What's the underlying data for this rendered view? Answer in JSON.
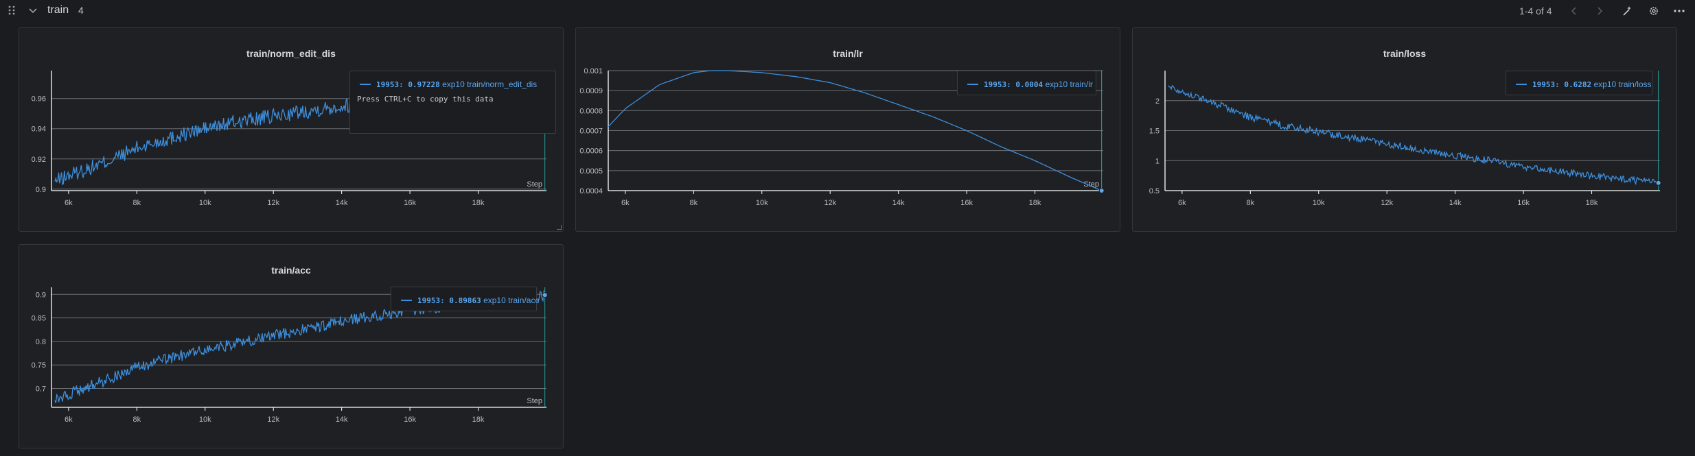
{
  "section": {
    "title": "train",
    "count": "4",
    "pagination": "1-4 of 4"
  },
  "colors": {
    "background": "#1a1c1f",
    "panel": "#1e2023",
    "line": "#3d8fde",
    "axis": "#ffffff",
    "grid": "#6c7076",
    "accent": "#5aa7f0"
  },
  "icons": [
    "drag-handle-icon",
    "chevron-down-icon",
    "chevron-left-icon",
    "chevron-right-icon",
    "wand-icon",
    "gear-icon",
    "more-options-icon"
  ],
  "panels": [
    {
      "id": "norm",
      "title": "train/norm_edit_dis",
      "legend": {
        "step": "19953",
        "value": "0.97228",
        "run": "exp10",
        "metric": "train/norm_edit_dis"
      },
      "tooltip_hint": "Press CTRL+C to copy this data",
      "x_axis_label": "Step",
      "x_ticks": [
        "6k",
        "8k",
        "10k",
        "12k",
        "14k",
        "16k",
        "18k"
      ],
      "y_ticks": [
        "0.9",
        "0.92",
        "0.94",
        "0.96"
      ]
    },
    {
      "id": "lr",
      "title": "train/lr",
      "legend": {
        "step": "19953",
        "value": "0.0004",
        "run": "exp10",
        "metric": "train/lr"
      },
      "x_axis_label": "Step",
      "x_ticks": [
        "6k",
        "8k",
        "10k",
        "12k",
        "14k",
        "16k",
        "18k"
      ],
      "y_ticks": [
        "0.0004",
        "0.0005",
        "0.0006",
        "0.0007",
        "0.0008",
        "0.0009",
        "0.001"
      ]
    },
    {
      "id": "loss",
      "title": "train/loss",
      "legend": {
        "step": "19953",
        "value": "0.6282",
        "run": "exp10",
        "metric": "train/loss"
      },
      "x_axis_label": "",
      "x_ticks": [
        "6k",
        "8k",
        "10k",
        "12k",
        "14k",
        "16k",
        "18k"
      ],
      "y_ticks": [
        "0.5",
        "1",
        "1.5",
        "2"
      ]
    },
    {
      "id": "acc",
      "title": "train/acc",
      "legend": {
        "step": "19953",
        "value": "0.89863",
        "run": "exp10",
        "metric": "train/acc"
      },
      "x_axis_label": "Step",
      "x_ticks": [
        "6k",
        "8k",
        "10k",
        "12k",
        "14k",
        "16k",
        "18k"
      ],
      "y_ticks": [
        "0.7",
        "0.75",
        "0.8",
        "0.85",
        "0.9"
      ]
    }
  ],
  "chart_data": [
    {
      "type": "line",
      "title": "train/norm_edit_dis",
      "xlabel": "Step",
      "ylabel": "",
      "xlim": [
        5500,
        20000
      ],
      "ylim": [
        0.899,
        0.9785
      ],
      "grid": true,
      "series": [
        {
          "name": "exp10 train/norm_edit_dis",
          "x": [
            5600,
            6000,
            7000,
            8000,
            9000,
            10000,
            11000,
            12000,
            13000,
            14000,
            15000,
            16000,
            17000,
            18000,
            19000,
            19953
          ],
          "y": [
            0.905,
            0.909,
            0.917,
            0.927,
            0.934,
            0.94,
            0.945,
            0.948,
            0.952,
            0.955,
            0.958,
            0.961,
            0.963,
            0.964,
            0.966,
            0.97228
          ],
          "noise": 0.005
        }
      ]
    },
    {
      "type": "line",
      "title": "train/lr",
      "xlabel": "Step",
      "ylabel": "",
      "xlim": [
        5500,
        20000
      ],
      "ylim": [
        0.0004,
        0.001
      ],
      "grid": true,
      "series": [
        {
          "name": "exp10 train/lr",
          "x": [
            5500,
            6000,
            7000,
            8000,
            8500,
            9000,
            10000,
            11000,
            12000,
            13000,
            14000,
            15000,
            16000,
            17000,
            18000,
            19000,
            19953
          ],
          "y": [
            0.00072,
            0.00081,
            0.00093,
            0.00099,
            0.001,
            0.001,
            0.00099,
            0.00097,
            0.00094,
            0.00089,
            0.00083,
            0.00077,
            0.0007,
            0.00062,
            0.00055,
            0.00047,
            0.0004
          ],
          "noise": 0
        }
      ]
    },
    {
      "type": "line",
      "title": "train/loss",
      "xlabel": "",
      "ylabel": "",
      "xlim": [
        5500,
        20000
      ],
      "ylim": [
        0.5,
        2.5
      ],
      "grid": true,
      "series": [
        {
          "name": "exp10 train/loss",
          "x": [
            5600,
            6000,
            7000,
            8000,
            9000,
            10000,
            11000,
            12000,
            13000,
            14000,
            15000,
            16000,
            17000,
            18000,
            19000,
            19953
          ],
          "y": [
            2.25,
            2.15,
            1.95,
            1.72,
            1.58,
            1.48,
            1.38,
            1.28,
            1.18,
            1.08,
            1.0,
            0.9,
            0.82,
            0.75,
            0.68,
            0.6282
          ],
          "noise": 0.06
        }
      ]
    },
    {
      "type": "line",
      "title": "train/acc",
      "xlabel": "Step",
      "ylabel": "",
      "xlim": [
        5500,
        20000
      ],
      "ylim": [
        0.66,
        0.915
      ],
      "grid": true,
      "series": [
        {
          "name": "exp10 train/acc",
          "x": [
            5600,
            6000,
            7000,
            8000,
            9000,
            10000,
            11000,
            12000,
            13000,
            14000,
            15000,
            16000,
            17000,
            18000,
            19000,
            19953
          ],
          "y": [
            0.675,
            0.688,
            0.715,
            0.745,
            0.765,
            0.782,
            0.797,
            0.812,
            0.827,
            0.842,
            0.855,
            0.866,
            0.874,
            0.882,
            0.888,
            0.89863
          ],
          "noise": 0.012
        }
      ]
    }
  ]
}
